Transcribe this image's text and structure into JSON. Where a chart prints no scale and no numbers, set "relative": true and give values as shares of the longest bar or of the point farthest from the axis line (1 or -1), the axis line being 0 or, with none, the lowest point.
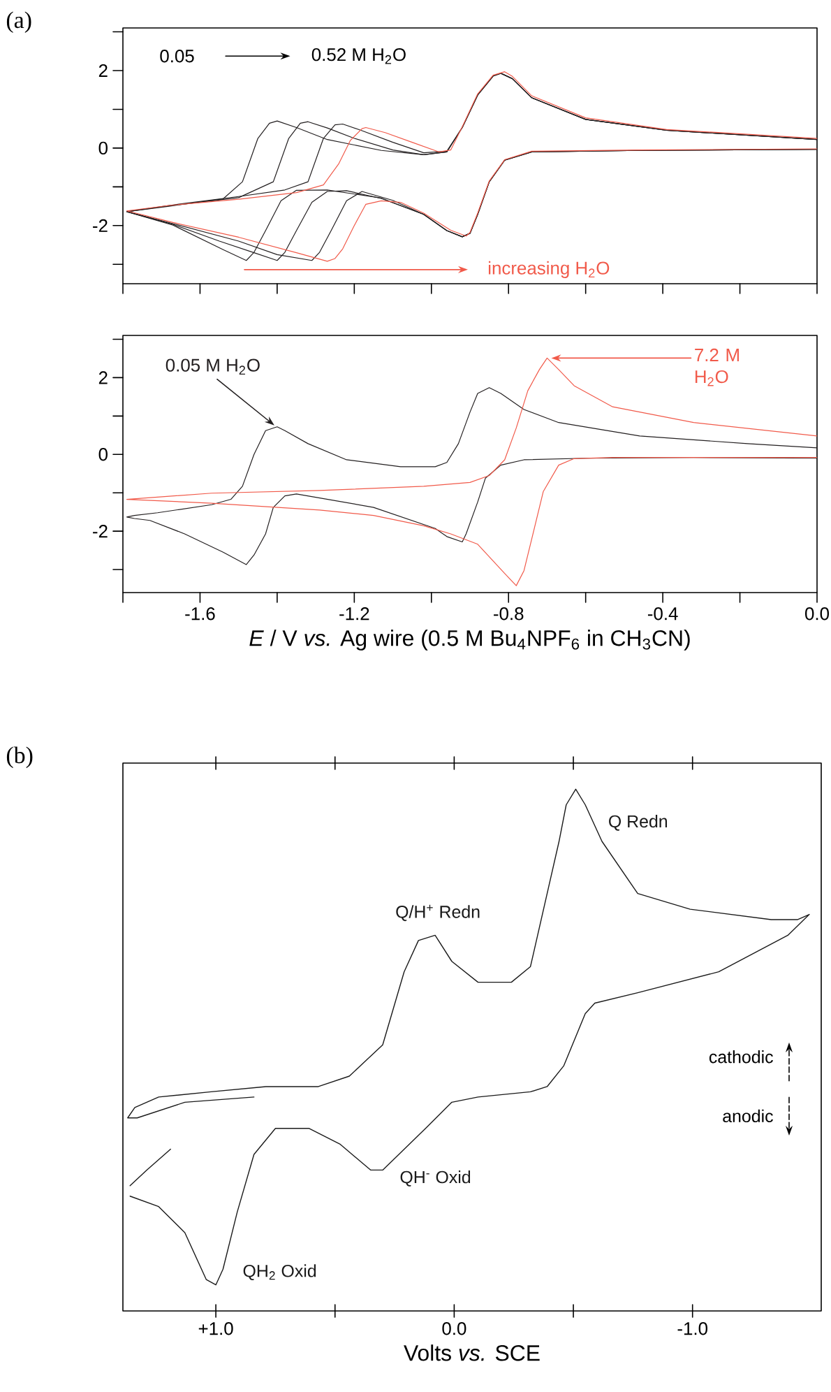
{
  "chart_data": [
    {
      "type": "line",
      "title": "(a)",
      "xlim": [
        -1.8,
        0.0
      ],
      "ylim": [
        -3.5,
        3.1
      ],
      "tick_labels": "y",
      "xticks": [
        -1.8,
        -1.6,
        -1.4,
        -1.2,
        -1.0,
        -0.8,
        -0.6,
        -0.4,
        -0.2,
        0
      ],
      "yticks": [
        {
          "value": -3,
          "label": null
        },
        -2,
        {
          "value": -1,
          "label": null
        },
        0,
        {
          "value": 1,
          "label": null
        },
        2,
        {
          "value": 3,
          "label": null
        }
      ],
      "annotations": [
        "0.05",
        "0.52 M H$_{2}$O",
        "increasing H$_{2}$O"
      ],
      "series": [
        {
          "color": "#231f20",
          "x": [
            0.0,
            -0.46,
            -0.74,
            -0.81,
            -0.85,
            -0.88,
            -0.9,
            -0.92,
            -0.96,
            -1.02,
            -1.13,
            -1.27,
            -1.35,
            -1.39,
            -1.43,
            -1.46,
            -1.48,
            -1.54,
            -1.67,
            -1.79,
            -1.68,
            -1.54,
            -1.49,
            -1.45,
            -1.42,
            -1.4,
            -1.35,
            -1.27,
            -1.13,
            -1.02,
            -0.96,
            -0.92,
            -0.88,
            -0.84,
            -0.82,
            -0.79,
            -0.74,
            -0.6,
            -0.39,
            0.0
          ],
          "values": [
            -0.03,
            -0.06,
            -0.1,
            -0.31,
            -0.87,
            -1.71,
            -2.2,
            -2.29,
            -2.13,
            -1.71,
            -1.29,
            -1.08,
            -1.09,
            -1.36,
            -2.13,
            -2.69,
            -2.9,
            -2.62,
            -1.99,
            -1.64,
            -1.5,
            -1.31,
            -0.87,
            0.25,
            0.64,
            0.7,
            0.53,
            0.22,
            -0.06,
            -0.17,
            -0.1,
            0.53,
            1.37,
            1.86,
            1.93,
            1.79,
            1.3,
            0.74,
            0.46,
            0.22
          ]
        },
        {
          "color": "#231f20",
          "x": [
            0.0,
            -0.46,
            -0.74,
            -0.81,
            -0.85,
            -0.88,
            -0.9,
            -0.92,
            -0.96,
            -1.02,
            -1.13,
            -1.22,
            -1.27,
            -1.31,
            -1.35,
            -1.38,
            -1.4,
            -1.46,
            -1.55,
            -1.67,
            -1.79,
            -1.68,
            -1.5,
            -1.41,
            -1.37,
            -1.34,
            -1.32,
            -1.27,
            -1.2,
            -1.1,
            -1.02,
            -0.96,
            -0.92,
            -0.88,
            -0.84,
            -0.82,
            -0.79,
            -0.74,
            -0.6,
            -0.39,
            0.0
          ],
          "values": [
            -0.03,
            -0.06,
            -0.1,
            -0.31,
            -0.87,
            -1.71,
            -2.2,
            -2.29,
            -2.13,
            -1.71,
            -1.3,
            -1.1,
            -1.12,
            -1.4,
            -2.13,
            -2.69,
            -2.9,
            -2.7,
            -2.4,
            -1.97,
            -1.64,
            -1.49,
            -1.28,
            -0.87,
            0.25,
            0.64,
            0.68,
            0.52,
            0.25,
            -0.05,
            -0.17,
            -0.1,
            0.53,
            1.37,
            1.86,
            1.93,
            1.79,
            1.3,
            0.74,
            0.46,
            0.22
          ]
        },
        {
          "color": "#231f20",
          "x": [
            0.0,
            -0.46,
            -0.74,
            -0.81,
            -0.85,
            -0.88,
            -0.9,
            -0.92,
            -0.96,
            -1.02,
            -1.1,
            -1.18,
            -1.22,
            -1.26,
            -1.29,
            -1.31,
            -1.4,
            -1.5,
            -1.67,
            -1.79,
            -1.68,
            -1.5,
            -1.38,
            -1.32,
            -1.28,
            -1.25,
            -1.23,
            -1.18,
            -1.1,
            -1.02,
            -0.96,
            -0.92,
            -0.88,
            -0.84,
            -0.82,
            -0.79,
            -0.74,
            -0.6,
            -0.39,
            0.0
          ],
          "values": [
            -0.03,
            -0.06,
            -0.1,
            -0.31,
            -0.87,
            -1.71,
            -2.2,
            -2.29,
            -2.13,
            -1.71,
            -1.35,
            -1.12,
            -1.36,
            -2.13,
            -2.69,
            -2.9,
            -2.75,
            -2.4,
            -1.95,
            -1.64,
            -1.48,
            -1.25,
            -1.08,
            -0.87,
            0.25,
            0.6,
            0.62,
            0.45,
            0.15,
            -0.12,
            -0.08,
            0.53,
            1.37,
            1.86,
            1.93,
            1.79,
            1.3,
            0.74,
            0.46,
            0.22
          ]
        },
        {
          "color": "#f15a4a",
          "x": [
            0.0,
            -0.46,
            -0.74,
            -0.81,
            -0.85,
            -0.88,
            -0.9,
            -0.91,
            -0.95,
            -1.02,
            -1.08,
            -1.13,
            -1.17,
            -1.2,
            -1.23,
            -1.25,
            -1.27,
            -1.35,
            -1.5,
            -1.67,
            -1.79,
            -1.68,
            -1.5,
            -1.35,
            -1.28,
            -1.24,
            -1.21,
            -1.18,
            -1.17,
            -1.12,
            -1.05,
            -0.98,
            -0.95,
            -0.92,
            -0.88,
            -0.84,
            -0.81,
            -0.79,
            -0.74,
            -0.6,
            -0.39,
            0.0
          ],
          "values": [
            -0.02,
            -0.05,
            -0.08,
            -0.3,
            -0.85,
            -1.68,
            -2.18,
            -2.27,
            -2.12,
            -1.68,
            -1.4,
            -1.36,
            -1.45,
            -2.0,
            -2.6,
            -2.85,
            -2.92,
            -2.7,
            -2.3,
            -1.92,
            -1.62,
            -1.48,
            -1.32,
            -1.15,
            -0.95,
            -0.4,
            0.2,
            0.5,
            0.53,
            0.4,
            0.15,
            -0.1,
            -0.05,
            0.55,
            1.4,
            1.88,
            1.97,
            1.85,
            1.35,
            0.78,
            0.48,
            0.25
          ]
        }
      ]
    },
    {
      "type": "line",
      "xlabel": "*E* / V *vs.* Ag wire (0.5 M Bu$_{4}$NPF$_{6}$ in CH$_{3}$CN)",
      "xlim": [
        -1.8,
        0.0
      ],
      "ylim": [
        -3.6,
        3.1
      ],
      "xticks": [
        {
          "value": -1.8,
          "label": null
        },
        -1.6,
        {
          "value": -1.4,
          "label": null
        },
        -1.2,
        {
          "value": -1.0,
          "label": null
        },
        -0.8,
        {
          "value": -0.6,
          "label": null
        },
        -0.4,
        {
          "value": -0.2,
          "label": null
        },
        {
          "value": 0,
          "label": "0.0"
        }
      ],
      "yticks": [
        {
          "value": -3,
          "label": null
        },
        -2,
        {
          "value": -1,
          "label": null
        },
        0,
        {
          "value": 1,
          "label": null
        },
        2,
        {
          "value": 3,
          "label": null
        }
      ],
      "annotations": [
        {
          "text": "0.05 M H$_{2}$O",
          "x": -1.4,
          "y": 0.72
        },
        {
          "text": "7.2 M H$_{2}$O",
          "x": -0.7,
          "y": 2.51
        }
      ],
      "series": [
        {
          "color": "#231f20",
          "x": [
            0.0,
            -0.32,
            -0.6,
            -0.76,
            -0.82,
            -0.86,
            -0.88,
            -0.91,
            -0.92,
            -0.96,
            -0.99,
            -1.15,
            -1.35,
            -1.38,
            -1.41,
            -1.43,
            -1.46,
            -1.48,
            -1.54,
            -1.64,
            -1.73,
            -1.77,
            -1.79,
            -1.77,
            -1.71,
            -1.57,
            -1.52,
            -1.49,
            -1.46,
            -1.43,
            -1.4,
            -1.38,
            -1.32,
            -1.22,
            -1.08,
            -0.99,
            -0.96,
            -0.93,
            -0.9,
            -0.88,
            -0.85,
            -0.82,
            -0.76,
            -0.67,
            -0.46,
            -0.18,
            0.0
          ],
          "values": [
            -0.1,
            -0.08,
            -0.1,
            -0.14,
            -0.28,
            -0.62,
            -1.24,
            -2.07,
            -2.28,
            -2.14,
            -1.93,
            -1.38,
            -1.03,
            -1.08,
            -1.38,
            -2.07,
            -2.62,
            -2.87,
            -2.55,
            -2.07,
            -1.72,
            -1.67,
            -1.63,
            -1.59,
            -1.52,
            -1.31,
            -1.17,
            -0.83,
            0.0,
            0.62,
            0.72,
            0.62,
            0.28,
            -0.14,
            -0.32,
            -0.32,
            -0.21,
            0.28,
            1.1,
            1.59,
            1.74,
            1.59,
            1.17,
            0.83,
            0.48,
            0.28,
            0.17
          ]
        },
        {
          "color": "#f15a4a",
          "x": [
            0.0,
            -0.53,
            -0.63,
            -0.67,
            -0.71,
            -0.74,
            -0.76,
            -0.78,
            -0.81,
            -0.88,
            -0.95,
            -1.02,
            -1.15,
            -1.29,
            -1.57,
            -1.79,
            -1.57,
            -1.29,
            -1.02,
            -0.9,
            -0.85,
            -0.81,
            -0.78,
            -0.75,
            -0.72,
            -0.7,
            -0.67,
            -0.63,
            -0.53,
            -0.32,
            0.0
          ],
          "values": [
            -0.08,
            -0.08,
            -0.11,
            -0.28,
            -0.97,
            -2.21,
            -3.03,
            -3.42,
            -3.1,
            -2.34,
            -2.07,
            -1.86,
            -1.59,
            -1.45,
            -1.27,
            -1.17,
            -1.01,
            -0.94,
            -0.83,
            -0.73,
            -0.55,
            -0.14,
            0.69,
            1.66,
            2.21,
            2.51,
            2.21,
            1.79,
            1.24,
            0.83,
            0.48
          ]
        }
      ]
    },
    {
      "type": "line",
      "title": "(b)",
      "xlabel": "Volts *vs.* SCE",
      "relative": true,
      "xlim": [
        1.39,
        -1.54
      ],
      "xticks": [
        {
          "value": 1.0,
          "label": "+1.0"
        },
        {
          "value": 0.5,
          "label": null
        },
        {
          "value": 0,
          "label": "0.0"
        },
        {
          "value": -0.5,
          "label": null
        },
        {
          "value": -1.0,
          "label": "-1.0"
        }
      ],
      "annotations": [
        {
          "text": "Q Redn",
          "x": -0.51,
          "y": 1.0
        },
        {
          "text": "Q/H$^{+}$ Redn",
          "x": 0.08,
          "y": 0.72
        },
        {
          "text": "QH$^{-}$ Oxid",
          "x": 0.3,
          "y": 0.27
        },
        {
          "text": "QH$_{2}$ Oxid",
          "x": 1.0,
          "y": 0.05
        },
        "cathodic",
        "anodic"
      ],
      "series": [
        {
          "color": "#1a1a1a",
          "x": [
            0.84,
            1.13,
            1.33,
            1.37,
            1.34,
            1.24,
            1.02,
            0.79,
            0.57,
            0.44,
            0.3,
            0.21,
            0.15,
            0.08,
            0.01,
            -0.1,
            -0.24,
            -0.32,
            -0.44,
            -0.47,
            -0.51,
            -0.55,
            -0.62,
            -0.77,
            -0.99,
            -1.33,
            -1.44,
            -1.49,
            -1.4,
            -1.11,
            -0.77,
            -0.59,
            -0.55,
            -0.46,
            -0.39,
            -0.32,
            -0.1,
            0.01,
            0.12,
            0.3,
            0.35,
            0.48,
            0.61,
            0.75,
            0.84,
            0.91,
            0.97,
            1.0,
            1.04,
            1.13,
            1.24,
            1.36
          ],
          "values": [
            0.41,
            0.4,
            0.37,
            0.37,
            0.39,
            0.41,
            0.42,
            0.43,
            0.43,
            0.45,
            0.51,
            0.65,
            0.71,
            0.72,
            0.67,
            0.63,
            0.63,
            0.66,
            0.9,
            0.97,
            1.0,
            0.97,
            0.9,
            0.8,
            0.77,
            0.75,
            0.75,
            0.76,
            0.72,
            0.65,
            0.61,
            0.59,
            0.57,
            0.47,
            0.43,
            0.42,
            0.41,
            0.4,
            0.35,
            0.27,
            0.27,
            0.32,
            0.35,
            0.35,
            0.3,
            0.19,
            0.08,
            0.05,
            0.06,
            0.15,
            0.2,
            0.22
          ]
        },
        {
          "color": "#1a1a1a",
          "x": [
            1.36,
            1.29,
            1.19
          ],
          "values": [
            0.24,
            0.27,
            0.31
          ]
        }
      ]
    }
  ]
}
